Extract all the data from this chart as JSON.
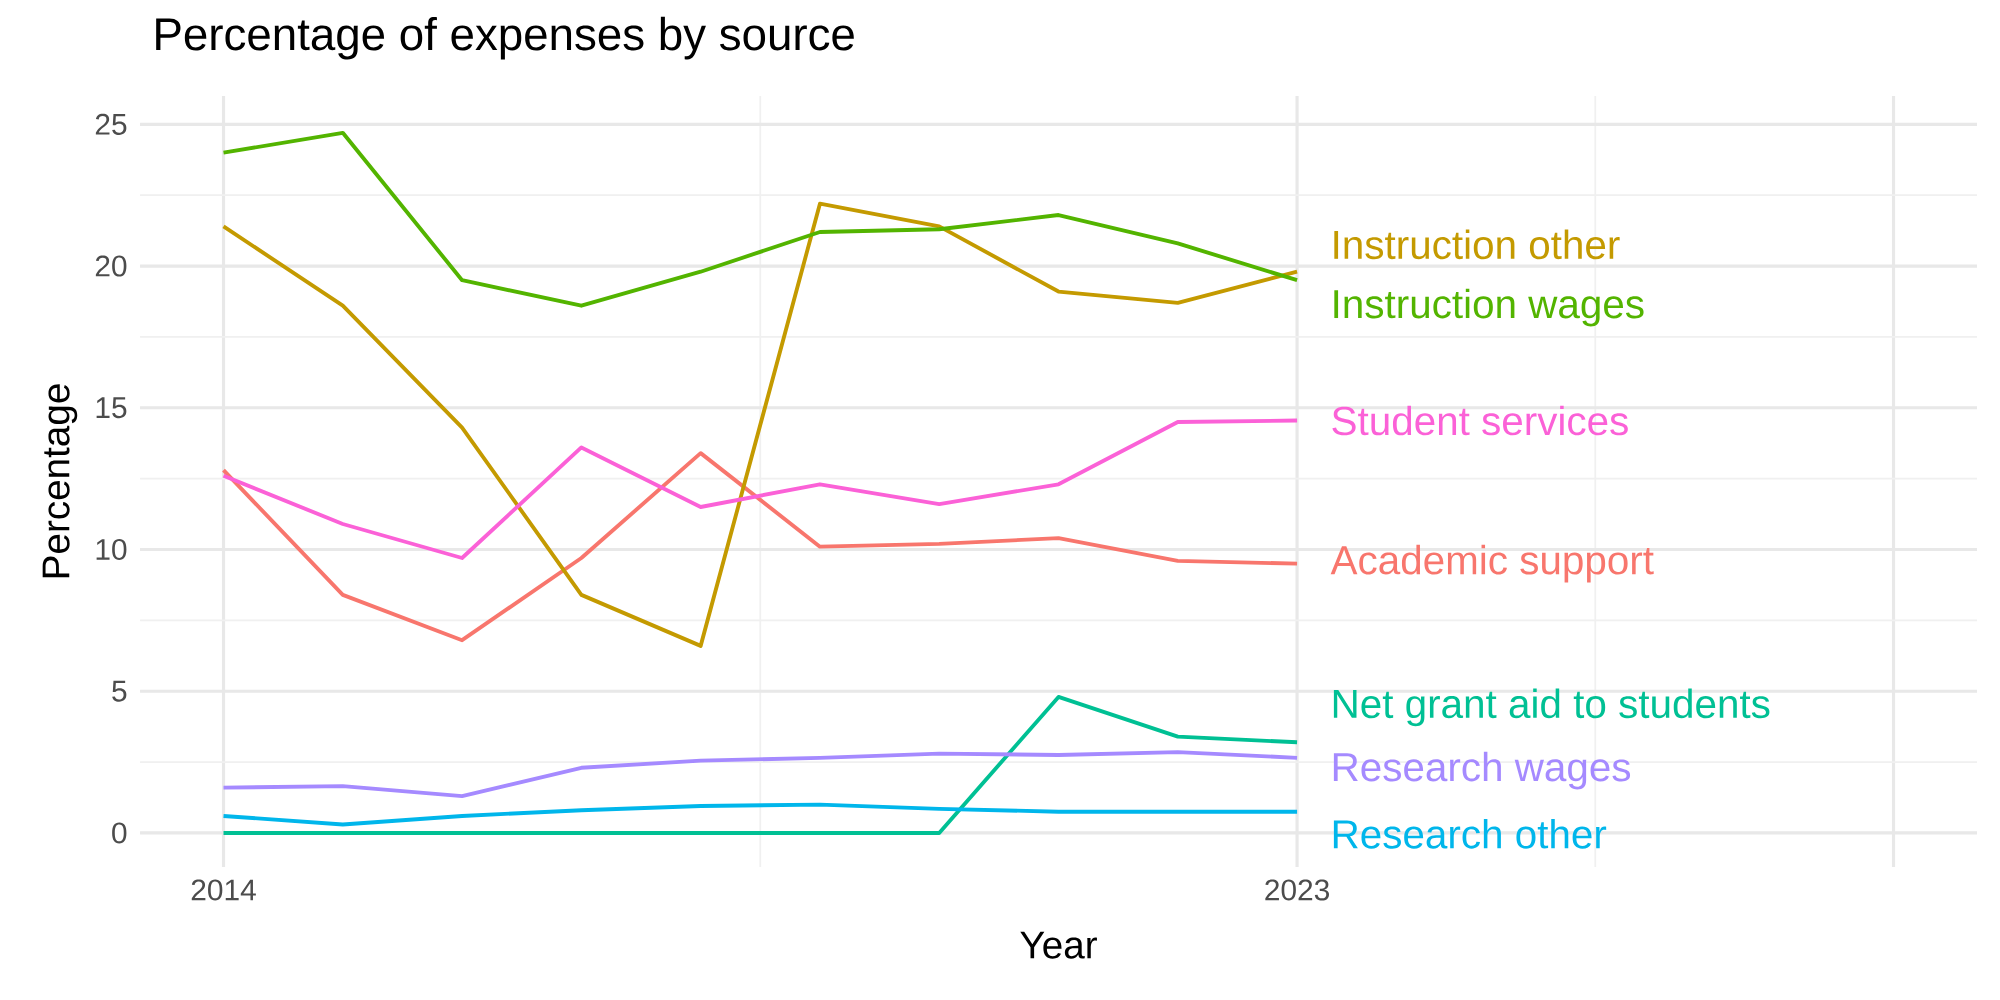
{
  "chart_data": {
    "type": "line",
    "title": "Percentage of expenses by source",
    "xlabel": "Year",
    "ylabel": "Percentage",
    "x": [
      2014,
      2015,
      2016,
      2017,
      2018,
      2019,
      2020,
      2021,
      2022,
      2023
    ],
    "xlim": [
      2013.3,
      2028.7
    ],
    "xticks": [
      2014,
      2023,
      {
        "value": 2028,
        "label": null
      }
    ],
    "ylim": [
      -1.2,
      26
    ],
    "yticks": [
      0,
      5,
      10,
      15,
      20,
      25
    ],
    "grid": true,
    "legend": false,
    "marker": "none",
    "line_style": "solid",
    "series": [
      {
        "name": "Academic support",
        "color": "#F8766D",
        "values": [
          12.8,
          8.4,
          6.8,
          9.7,
          13.4,
          10.1,
          10.2,
          10.4,
          9.6,
          9.5
        ]
      },
      {
        "name": "Instruction other",
        "color": "#C49A00",
        "values": [
          21.4,
          18.6,
          14.3,
          8.4,
          6.6,
          22.2,
          21.4,
          19.1,
          18.7,
          19.8
        ]
      },
      {
        "name": "Instruction wages",
        "color": "#53B400",
        "values": [
          24.0,
          24.7,
          19.5,
          18.6,
          19.8,
          21.2,
          21.3,
          21.8,
          20.8,
          19.5
        ]
      },
      {
        "name": "Net grant aid to students",
        "color": "#00C094",
        "values": [
          0,
          0,
          0,
          0,
          0,
          0,
          0,
          4.8,
          3.4,
          3.2
        ]
      },
      {
        "name": "Research other",
        "color": "#00B6EB",
        "values": [
          0.6,
          0.3,
          0.6,
          0.8,
          0.95,
          1.0,
          0.85,
          0.75,
          0.75,
          0.75
        ]
      },
      {
        "name": "Research wages",
        "color": "#A58AFF",
        "values": [
          1.6,
          1.65,
          1.3,
          2.3,
          2.55,
          2.65,
          2.8,
          2.75,
          2.85,
          2.65
        ]
      },
      {
        "name": "Student services",
        "color": "#FB61D7",
        "values": [
          12.6,
          10.9,
          9.7,
          13.6,
          11.5,
          12.3,
          11.6,
          12.3,
          14.5,
          14.55
        ]
      }
    ]
  }
}
